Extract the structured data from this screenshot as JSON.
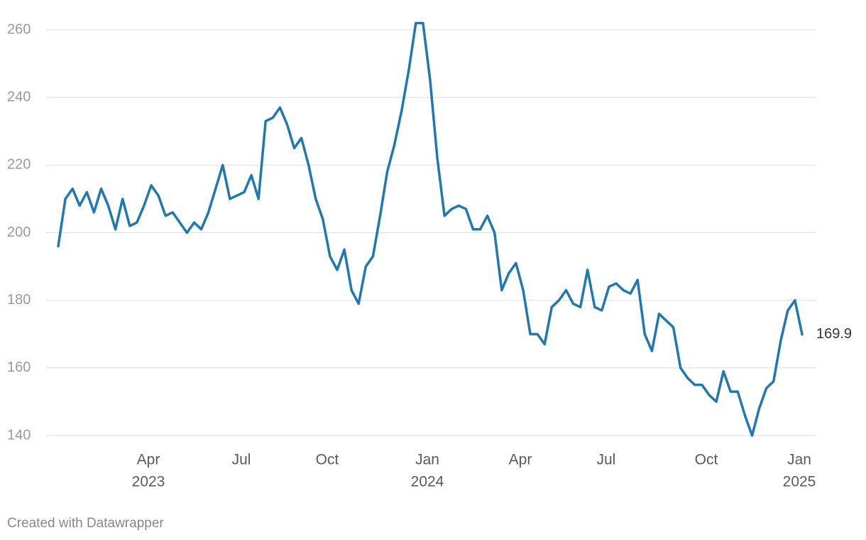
{
  "chart_data": {
    "type": "line",
    "categories": [
      null,
      null,
      null,
      null,
      null,
      null,
      null,
      null,
      null,
      null,
      null,
      null,
      null,
      "Apr",
      null,
      null,
      null,
      null,
      null,
      null,
      null,
      null,
      null,
      null,
      null,
      null,
      "Jul",
      null,
      null,
      null,
      null,
      null,
      null,
      null,
      null,
      null,
      null,
      null,
      "Oct",
      null,
      null,
      null,
      null,
      null,
      null,
      null,
      null,
      null,
      null,
      null,
      null,
      null,
      "Jan",
      null,
      null,
      null,
      null,
      null,
      null,
      null,
      null,
      null,
      null,
      null,
      null,
      "Apr",
      null,
      null,
      null,
      null,
      null,
      null,
      null,
      null,
      null,
      null,
      null,
      "Jul",
      null,
      null,
      null,
      null,
      null,
      null,
      null,
      null,
      null,
      null,
      null,
      null,
      null,
      "Oct",
      null,
      null,
      null,
      null,
      null,
      null,
      null,
      null,
      null,
      null,
      null,
      null,
      "Jan"
    ],
    "category_years": [
      null,
      null,
      null,
      null,
      null,
      null,
      null,
      null,
      null,
      null,
      null,
      null,
      null,
      "2023",
      null,
      null,
      null,
      null,
      null,
      null,
      null,
      null,
      null,
      null,
      null,
      null,
      null,
      null,
      null,
      null,
      null,
      null,
      null,
      null,
      null,
      null,
      null,
      null,
      null,
      null,
      null,
      null,
      null,
      null,
      null,
      null,
      null,
      null,
      null,
      null,
      null,
      null,
      "2024",
      null,
      null,
      null,
      null,
      null,
      null,
      null,
      null,
      null,
      null,
      null,
      null,
      null,
      null,
      null,
      null,
      null,
      null,
      null,
      null,
      null,
      null,
      null,
      null,
      null,
      null,
      null,
      null,
      null,
      null,
      null,
      null,
      null,
      null,
      null,
      null,
      null,
      null,
      null,
      null,
      null,
      null,
      null,
      null,
      null,
      null,
      null,
      null,
      null,
      null,
      null,
      "2025"
    ],
    "values": [
      196,
      210,
      213,
      208,
      212,
      206,
      213,
      208,
      201,
      210,
      202,
      203,
      208,
      214,
      211,
      205,
      206,
      203,
      200,
      203,
      201,
      206,
      213,
      220,
      210,
      211,
      212,
      217,
      210,
      233,
      234,
      237,
      232,
      225,
      228,
      220,
      210,
      204,
      193,
      189,
      195,
      183,
      179,
      190,
      193,
      205,
      218,
      226,
      236,
      248,
      262,
      262,
      245,
      222,
      205,
      207,
      208,
      207,
      201,
      201,
      205,
      200,
      183,
      188,
      191,
      183,
      170,
      170,
      167,
      178,
      180,
      183,
      179,
      178,
      189,
      178,
      177,
      184,
      185,
      183,
      182,
      186,
      170,
      165,
      176,
      174,
      172,
      160,
      157,
      155,
      155,
      152,
      150,
      159,
      153,
      153,
      146,
      140,
      148,
      154,
      156,
      168,
      177,
      180,
      169.9
    ],
    "color": "#1f77b4",
    "ylim": [
      140,
      260
    ],
    "yticks": [
      140,
      160,
      180,
      200,
      220,
      240,
      260
    ],
    "grid": true,
    "last_value_label": true,
    "footer": "Created with Datawrapper"
  }
}
